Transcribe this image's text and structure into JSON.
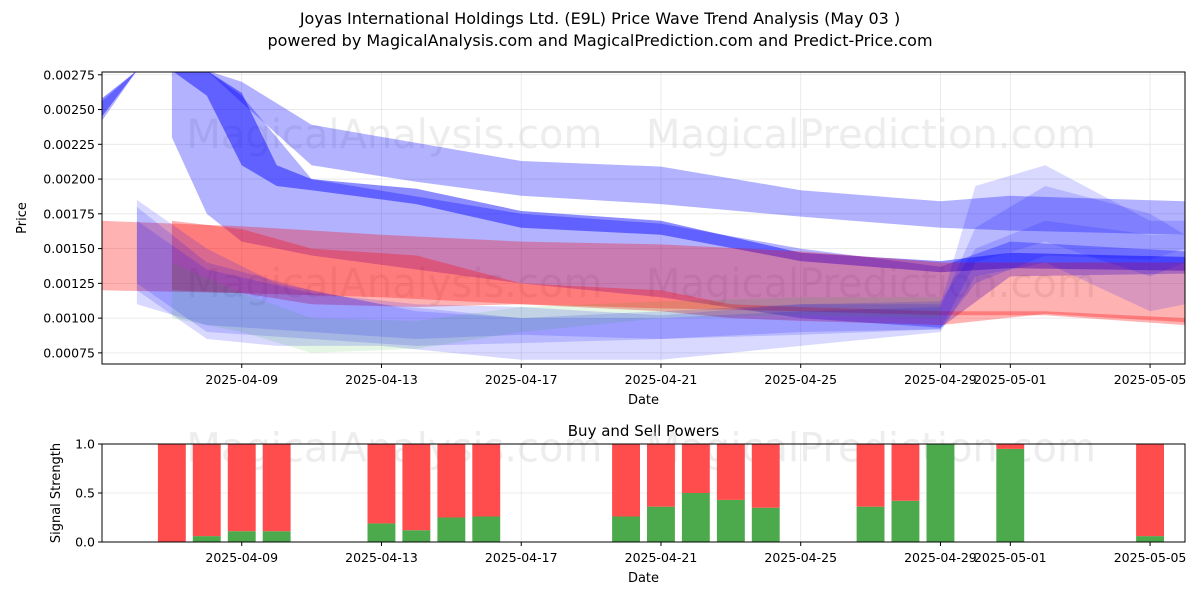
{
  "title": "Joyas International Holdings Ltd. (E9L) Price Wave Trend Analysis (May 03 )",
  "subtitle": "powered by MagicalAnalysis.com and MagicalPrediction.com and Predict-Price.com",
  "watermarks": [
    "MagicalAnalysis.com",
    "MagicalPrediction.com"
  ],
  "chart_data": [
    {
      "type": "area",
      "title": "",
      "xlabel": "Date",
      "ylabel": "Price",
      "x_ticks": [
        "2025-04-09",
        "2025-04-13",
        "2025-04-17",
        "2025-04-21",
        "2025-04-25",
        "2025-04-29",
        "2025-05-01",
        "2025-05-05"
      ],
      "y_ticks": [
        "0.00075",
        "0.00100",
        "0.00125",
        "0.00150",
        "0.00175",
        "0.00200",
        "0.00225",
        "0.00250",
        "0.00275"
      ],
      "xlim": [
        "2025-04-05",
        "2025-05-06"
      ],
      "ylim": [
        0.00067,
        0.00277
      ],
      "grid": true,
      "colors": {
        "blue": "#0000ff",
        "red": "#ff0000",
        "green": "#00aa00"
      },
      "series": [
        {
          "color": "blue",
          "opacity": 0.3,
          "points": [
            [
              "2025-04-05",
              0.00242,
              0.00256
            ],
            [
              "2025-04-06",
              0.00278,
              0.00278
            ],
            [
              "2025-04-08",
              0.00278,
              0.00278
            ],
            [
              "2025-04-09",
              0.00255,
              0.0027
            ],
            [
              "2025-04-11",
              0.0021,
              0.00239
            ],
            [
              "2025-04-14",
              0.00198,
              0.00226
            ],
            [
              "2025-04-17",
              0.00188,
              0.00213
            ],
            [
              "2025-04-21",
              0.00182,
              0.00209
            ],
            [
              "2025-04-25",
              0.00173,
              0.00192
            ],
            [
              "2025-04-29",
              0.00165,
              0.00184
            ],
            [
              "2025-05-01",
              0.00163,
              0.00188
            ],
            [
              "2025-05-06",
              0.0016,
              0.00184
            ]
          ]
        },
        {
          "color": "blue",
          "opacity": 0.45,
          "points": [
            [
              "2025-04-05",
              0.00245,
              0.00258
            ],
            [
              "2025-04-06",
              0.00278,
              0.00278
            ],
            [
              "2025-04-07",
              0.00278,
              0.00278
            ],
            [
              "2025-04-08",
              0.0026,
              0.00278
            ],
            [
              "2025-04-09",
              0.0021,
              0.00262
            ],
            [
              "2025-04-10",
              0.00195,
              0.0021
            ],
            [
              "2025-04-11",
              0.00192,
              0.002
            ],
            [
              "2025-04-14",
              0.00182,
              0.00193
            ],
            [
              "2025-04-17",
              0.00165,
              0.00177
            ],
            [
              "2025-04-21",
              0.0016,
              0.0017
            ],
            [
              "2025-04-25",
              0.00141,
              0.00147
            ],
            [
              "2025-04-29",
              0.00133,
              0.00141
            ],
            [
              "2025-05-01",
              0.00136,
              0.00147
            ],
            [
              "2025-05-06",
              0.00134,
              0.00144
            ]
          ]
        },
        {
          "color": "blue",
          "opacity": 0.3,
          "points": [
            [
              "2025-04-07",
              0.0023,
              0.00278
            ],
            [
              "2025-04-08",
              0.00175,
              0.00278
            ],
            [
              "2025-04-09",
              0.00155,
              0.0026
            ],
            [
              "2025-04-11",
              0.00145,
              0.002
            ],
            [
              "2025-04-17",
              0.00125,
              0.00175
            ],
            [
              "2025-04-21",
              0.00115,
              0.00168
            ],
            [
              "2025-04-25",
              0.001,
              0.0015
            ],
            [
              "2025-04-29",
              0.00093,
              0.00137
            ],
            [
              "2025-05-01",
              0.0013,
              0.00155
            ],
            [
              "2025-05-06",
              0.00132,
              0.00148
            ]
          ]
        },
        {
          "color": "red",
          "opacity": 0.3,
          "points": [
            [
              "2025-04-05",
              0.0012,
              0.0017
            ],
            [
              "2025-04-09",
              0.00118,
              0.00166
            ],
            [
              "2025-04-13",
              0.00115,
              0.0016
            ],
            [
              "2025-04-17",
              0.0011,
              0.00155
            ],
            [
              "2025-04-21",
              0.00107,
              0.00153
            ],
            [
              "2025-04-25",
              0.00105,
              0.00148
            ],
            [
              "2025-04-29",
              0.00102,
              0.0014
            ],
            [
              "2025-05-02",
              0.00102,
              0.0014
            ],
            [
              "2025-05-06",
              0.00095,
              0.0014
            ]
          ]
        },
        {
          "color": "red",
          "opacity": 0.3,
          "points": [
            [
              "2025-04-07",
              0.0012,
              0.0017
            ],
            [
              "2025-04-09",
              0.00118,
              0.00164
            ],
            [
              "2025-04-11",
              0.0011,
              0.0015
            ],
            [
              "2025-04-14",
              0.00108,
              0.00145
            ],
            [
              "2025-04-17",
              0.0011,
              0.00125
            ],
            [
              "2025-04-21",
              0.00105,
              0.0012
            ],
            [
              "2025-04-23",
              0.001,
              0.0011
            ],
            [
              "2025-04-25",
              0.00098,
              0.00108
            ],
            [
              "2025-04-29",
              0.00095,
              0.00105
            ],
            [
              "2025-05-02",
              0.00103,
              0.00105
            ],
            [
              "2025-05-06",
              0.00097,
              0.001
            ]
          ]
        },
        {
          "color": "blue",
          "opacity": 0.15,
          "points": [
            [
              "2025-04-06",
              0.0012,
              0.00185
            ],
            [
              "2025-04-08",
              0.00085,
              0.0015
            ],
            [
              "2025-04-10",
              0.0008,
              0.00125
            ],
            [
              "2025-04-13",
              0.0008,
              0.0011
            ],
            [
              "2025-04-17",
              0.0007,
              0.001
            ],
            [
              "2025-04-21",
              0.0007,
              0.00105
            ],
            [
              "2025-04-25",
              0.0008,
              0.0011
            ],
            [
              "2025-04-29",
              0.0009,
              0.0011
            ],
            [
              "2025-04-30",
              0.0013,
              0.00195
            ],
            [
              "2025-05-02",
              0.0014,
              0.0021
            ],
            [
              "2025-05-05",
              0.00105,
              0.0017
            ],
            [
              "2025-05-06",
              0.0011,
              0.0017
            ]
          ]
        },
        {
          "color": "blue",
          "opacity": 0.15,
          "points": [
            [
              "2025-04-06",
              0.00125,
              0.0018
            ],
            [
              "2025-04-08",
              0.0009,
              0.0014
            ],
            [
              "2025-04-11",
              0.00085,
              0.0012
            ],
            [
              "2025-04-14",
              0.0008,
              0.00105
            ],
            [
              "2025-04-17",
              0.00082,
              0.001
            ],
            [
              "2025-04-21",
              0.00085,
              0.001
            ],
            [
              "2025-04-25",
              0.00088,
              0.00105
            ],
            [
              "2025-04-29",
              0.00092,
              0.00108
            ],
            [
              "2025-04-30",
              0.0014,
              0.00165
            ],
            [
              "2025-05-02",
              0.00155,
              0.00195
            ],
            [
              "2025-05-05",
              0.0013,
              0.00175
            ],
            [
              "2025-05-06",
              0.0014,
              0.0016
            ]
          ]
        },
        {
          "color": "blue",
          "opacity": 0.15,
          "points": [
            [
              "2025-04-06",
              0.0011,
              0.0017
            ],
            [
              "2025-04-08",
              0.00095,
              0.00135
            ],
            [
              "2025-04-11",
              0.0009,
              0.00118
            ],
            [
              "2025-04-14",
              0.00085,
              0.0011
            ],
            [
              "2025-04-17",
              0.00088,
              0.00108
            ],
            [
              "2025-04-21",
              0.00085,
              0.00102
            ],
            [
              "2025-04-25",
              0.0009,
              0.0011
            ],
            [
              "2025-04-29",
              0.00092,
              0.00112
            ],
            [
              "2025-04-30",
              0.00125,
              0.0015
            ],
            [
              "2025-05-02",
              0.00145,
              0.0017
            ],
            [
              "2025-05-05",
              0.00142,
              0.0016
            ],
            [
              "2025-05-06",
              0.0015,
              0.0016
            ]
          ]
        },
        {
          "color": "green",
          "opacity": 0.1,
          "points": [
            [
              "2025-04-07",
              0.001,
              0.0014
            ],
            [
              "2025-04-09",
              0.0009,
              0.00118
            ],
            [
              "2025-04-11",
              0.00075,
              0.001
            ],
            [
              "2025-04-14",
              0.00078,
              0.00098
            ],
            [
              "2025-04-17",
              0.0009,
              0.00108
            ],
            [
              "2025-04-21",
              0.001,
              0.00112
            ],
            [
              "2025-04-25",
              0.00102,
              0.00115
            ],
            [
              "2025-04-29",
              0.001,
              0.00115
            ]
          ]
        }
      ]
    },
    {
      "type": "bar",
      "title": "Buy and Sell Powers",
      "xlabel": "Date",
      "ylabel": "Signal Strength",
      "x_ticks": [
        "2025-04-09",
        "2025-04-13",
        "2025-04-17",
        "2025-04-21",
        "2025-04-25",
        "2025-04-29",
        "2025-05-01",
        "2025-05-05"
      ],
      "y_ticks": [
        "0.0",
        "0.5",
        "1.0"
      ],
      "xlim": [
        "2025-04-05",
        "2025-05-06"
      ],
      "ylim": [
        0,
        1
      ],
      "grid": true,
      "colors": {
        "buy": "#4caa4c",
        "sell": "#ff4c4c"
      },
      "categories": [
        "2025-04-07",
        "2025-04-08",
        "2025-04-09",
        "2025-04-10",
        "2025-04-13",
        "2025-04-14",
        "2025-04-15",
        "2025-04-16",
        "2025-04-20",
        "2025-04-21",
        "2025-04-22",
        "2025-04-23",
        "2025-04-24",
        "2025-04-27",
        "2025-04-28",
        "2025-04-29",
        "2025-05-01",
        "2025-05-05"
      ],
      "series": [
        {
          "name": "buy",
          "values": [
            0.0,
            0.06,
            0.11,
            0.11,
            0.19,
            0.12,
            0.25,
            0.26,
            0.26,
            0.36,
            0.5,
            0.43,
            0.35,
            0.36,
            0.42,
            1.0,
            0.95,
            0.06
          ]
        },
        {
          "name": "sell",
          "values": [
            1.0,
            0.94,
            0.89,
            0.89,
            0.81,
            0.88,
            0.75,
            0.74,
            0.74,
            0.64,
            0.5,
            0.57,
            0.65,
            0.64,
            0.58,
            0.0,
            0.05,
            0.94
          ]
        }
      ]
    }
  ]
}
